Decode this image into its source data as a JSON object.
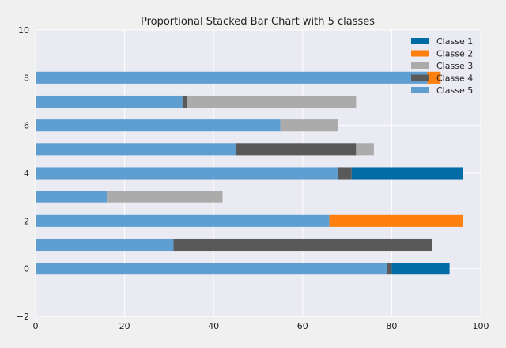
{
  "chart_data": {
    "type": "bar",
    "orientation": "horizontal",
    "stacked": true,
    "title": "Proportional Stacked Bar Chart with 5 classes",
    "xlabel": "",
    "ylabel": "",
    "xlim": [
      0,
      100
    ],
    "ylim": [
      -2,
      10
    ],
    "xticks": [
      0,
      20,
      40,
      60,
      80,
      100
    ],
    "yticks": [
      -2,
      0,
      2,
      4,
      6,
      8,
      10
    ],
    "grid": true,
    "legend_position": "top-right",
    "y": [
      0,
      1,
      2,
      3,
      4,
      5,
      6,
      7,
      8
    ],
    "stack_order": [
      "Classe 5",
      "Classe 4",
      "Classe 3",
      "Classe 2",
      "Classe 1"
    ],
    "series": [
      {
        "name": "Classe 1",
        "color": "#006ba4",
        "values": [
          13,
          0,
          0,
          0,
          25,
          0,
          0,
          0,
          0
        ]
      },
      {
        "name": "Classe 2",
        "color": "#ff800e",
        "values": [
          0,
          0,
          30,
          0,
          0,
          0,
          0,
          0,
          3
        ]
      },
      {
        "name": "Classe 3",
        "color": "#ababab",
        "values": [
          0,
          0,
          0,
          26,
          0,
          4,
          13,
          38,
          0
        ]
      },
      {
        "name": "Classe 4",
        "color": "#595959",
        "values": [
          1,
          58,
          0,
          0,
          3,
          27,
          0,
          1,
          0
        ]
      },
      {
        "name": "Classe 5",
        "color": "#5f9ed1",
        "values": [
          79,
          31,
          66,
          16,
          68,
          45,
          55,
          33,
          88
        ]
      }
    ]
  }
}
